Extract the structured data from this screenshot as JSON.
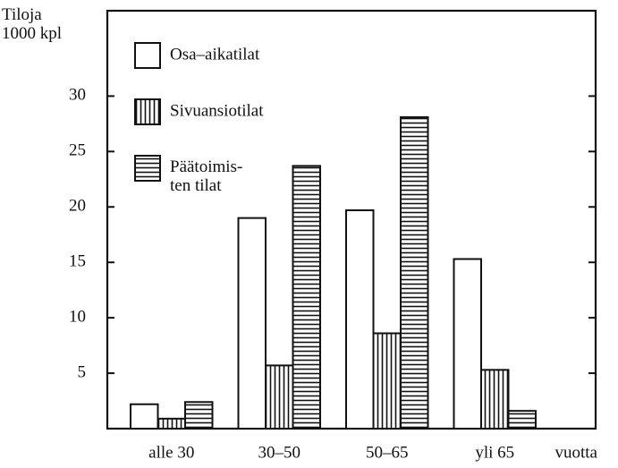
{
  "chart_data": {
    "type": "bar",
    "y_label": "Tiloja\n1000 kpl",
    "x_label": "vuotta",
    "categories": [
      "alle 30",
      "30–50",
      "50–65",
      "yli 65"
    ],
    "series": [
      {
        "name": "Osa–aikatilat",
        "color": "#ffffff",
        "pattern": "none",
        "values": [
          2.2,
          19,
          19.7,
          15.3
        ]
      },
      {
        "name": "Sivuansiotilat",
        "color": "#ffffff",
        "pattern": "vertical",
        "values": [
          0.9,
          5.7,
          8.6,
          5.3
        ]
      },
      {
        "name": "Päätoimis-\nten tilat",
        "color": "#ffffff",
        "pattern": "horizontal",
        "values": [
          2.4,
          23.7,
          28.1,
          1.6
        ]
      }
    ],
    "ylim": [
      0,
      37.7
    ],
    "yticks": [
      5,
      10,
      15,
      20,
      25,
      30
    ],
    "grid": false,
    "legend": "upper left"
  }
}
